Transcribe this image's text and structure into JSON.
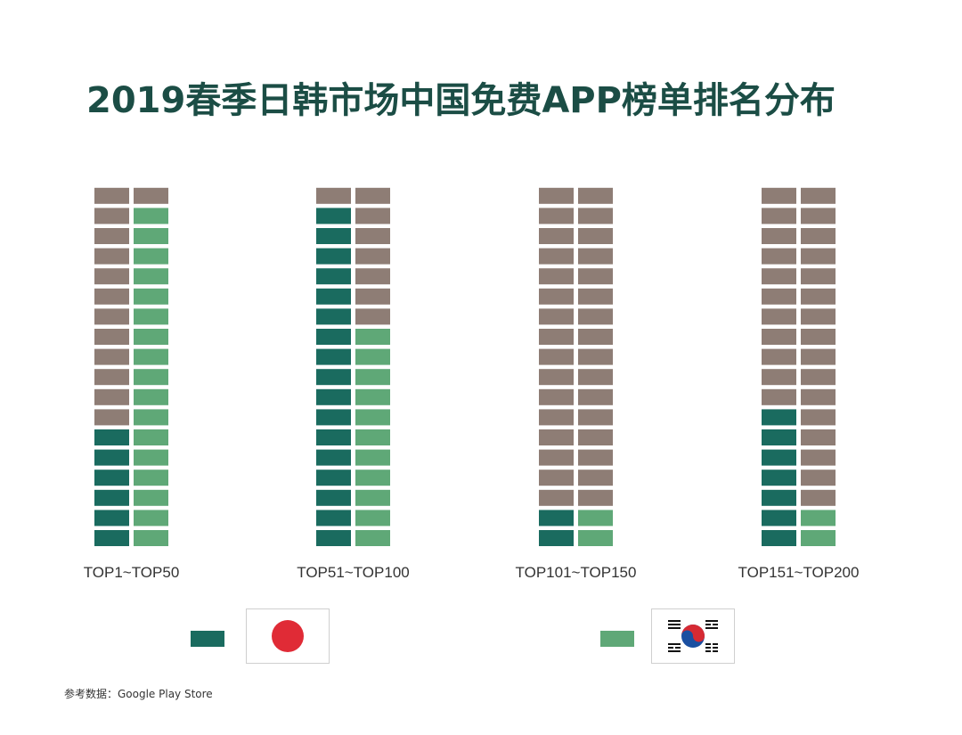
{
  "title": "2019春季日韩市场中国免费APP榜单排名分布",
  "source": "参考数据：Google Play Store",
  "colors": {
    "japan": "#1a6b5f",
    "korea": "#5fa877",
    "other": "#8e7d75",
    "title": "#1b4d45"
  },
  "legend": [
    {
      "market": "japan",
      "flag": "japan-flag"
    },
    {
      "market": "korea",
      "flag": "korea-flag"
    }
  ],
  "chart_data": {
    "type": "table",
    "categories": [
      "TOP1~TOP50",
      "TOP51~TOP100",
      "TOP101~TOP150",
      "TOP151~TOP200"
    ],
    "series": [
      {
        "market": "japan",
        "values": [
          6,
          17,
          2,
          7
        ]
      },
      {
        "market": "korea",
        "values": [
          17,
          11,
          2,
          2
        ]
      }
    ],
    "rows_per_column": 18
  }
}
